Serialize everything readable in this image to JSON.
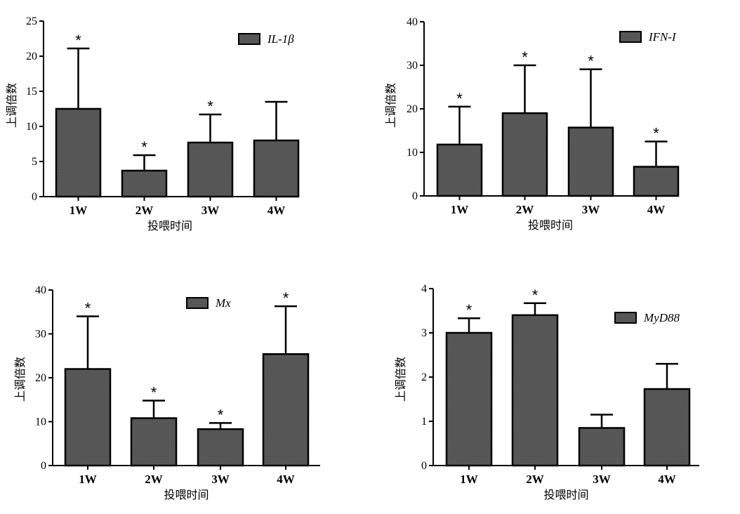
{
  "chart_data": [
    {
      "type": "bar",
      "categories": [
        "1W",
        "2W",
        "3W",
        "4W"
      ],
      "series": [
        {
          "name": "IL-1β",
          "values": [
            12.5,
            3.7,
            7.7,
            8.0
          ],
          "error": [
            8.6,
            2.2,
            4.0,
            5.5
          ]
        }
      ],
      "significant": [
        true,
        true,
        true,
        false
      ],
      "significance_mark": "*",
      "xlabel": "投喂时间",
      "ylabel": "上调倍数",
      "ylim": [
        0,
        25
      ],
      "yticks": [
        0,
        5,
        10,
        15,
        20,
        25
      ],
      "legend": "top-right",
      "grid": false,
      "bar_color": "#5a5a5a"
    },
    {
      "type": "bar",
      "categories": [
        "1W",
        "2W",
        "3W",
        "4W"
      ],
      "series": [
        {
          "name": "IFN-I",
          "values": [
            11.8,
            19.0,
            15.7,
            6.7
          ],
          "error": [
            8.7,
            11.0,
            13.4,
            5.8
          ]
        }
      ],
      "significant": [
        true,
        true,
        true,
        true
      ],
      "significance_mark": "*",
      "xlabel": "投喂时间",
      "ylabel": "上调倍数",
      "ylim": [
        0,
        40
      ],
      "yticks": [
        0,
        10,
        20,
        30,
        40
      ],
      "legend": "top-right",
      "grid": false,
      "bar_color": "#5a5a5a"
    },
    {
      "type": "bar",
      "categories": [
        "1W",
        "2W",
        "3W",
        "4W"
      ],
      "series": [
        {
          "name": "Mx",
          "values": [
            22.0,
            10.8,
            8.3,
            25.4
          ],
          "error": [
            12.0,
            4.0,
            1.4,
            10.9
          ]
        }
      ],
      "significant": [
        true,
        true,
        true,
        true
      ],
      "significance_mark": "*",
      "xlabel": "投喂时间",
      "ylabel": "上调倍数",
      "ylim": [
        0,
        40
      ],
      "yticks": [
        0,
        10,
        20,
        30,
        40
      ],
      "legend": "top-right",
      "grid": false,
      "bar_color": "#5a5a5a"
    },
    {
      "type": "bar",
      "categories": [
        "1W",
        "2W",
        "3W",
        "4W"
      ],
      "series": [
        {
          "name": "MyD88",
          "values": [
            3.0,
            3.4,
            0.85,
            1.73
          ],
          "error": [
            0.33,
            0.27,
            0.3,
            0.57
          ]
        }
      ],
      "significant": [
        true,
        true,
        false,
        false
      ],
      "significance_mark": "*",
      "xlabel": "投喂时间",
      "ylabel": "上调倍数",
      "ylim": [
        0,
        4
      ],
      "yticks": [
        0,
        1,
        2,
        3,
        4
      ],
      "legend": "top-right",
      "grid": false,
      "bar_color": "#5a5a5a"
    }
  ]
}
